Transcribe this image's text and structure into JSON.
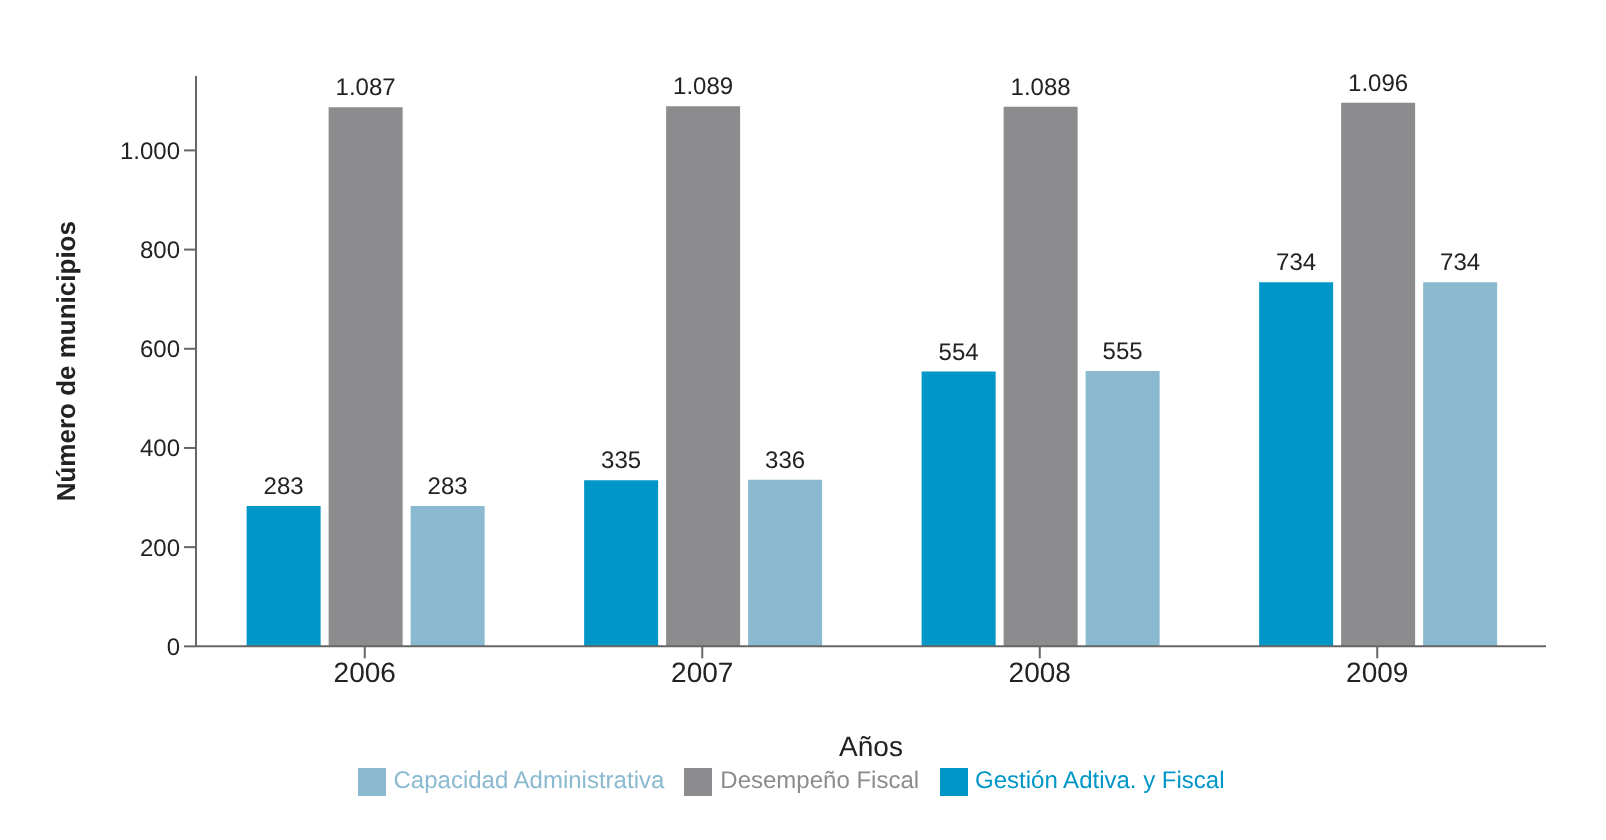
{
  "chart_data": {
    "type": "bar",
    "xlabel": "Años",
    "ylabel": "Número de municipios",
    "categories": [
      "2006",
      "2007",
      "2008",
      "2009"
    ],
    "series": [
      {
        "name": "Gestión Adtiva. y Fiscal",
        "color": "#0096c8",
        "values": [
          283,
          335,
          554,
          734
        ],
        "value_labels": [
          "283",
          "335",
          "554",
          "734"
        ]
      },
      {
        "name": "Desempeño Fiscal",
        "color": "#8c8c8f",
        "values": [
          1087,
          1089,
          1088,
          1096
        ],
        "value_labels": [
          "1.087",
          "1.089",
          "1.088",
          "1.096"
        ]
      },
      {
        "name": "Capacidad Administrativa",
        "color": "#8ab9d0",
        "values": [
          283,
          336,
          555,
          734
        ],
        "value_labels": [
          "283",
          "336",
          "555",
          "734"
        ]
      }
    ],
    "ylim": [
      0,
      1150
    ],
    "yticks": [
      0,
      200,
      400,
      600,
      800,
      {
        "value": 1000,
        "label": "1.000"
      }
    ],
    "grid": false,
    "legend": "bottom"
  }
}
